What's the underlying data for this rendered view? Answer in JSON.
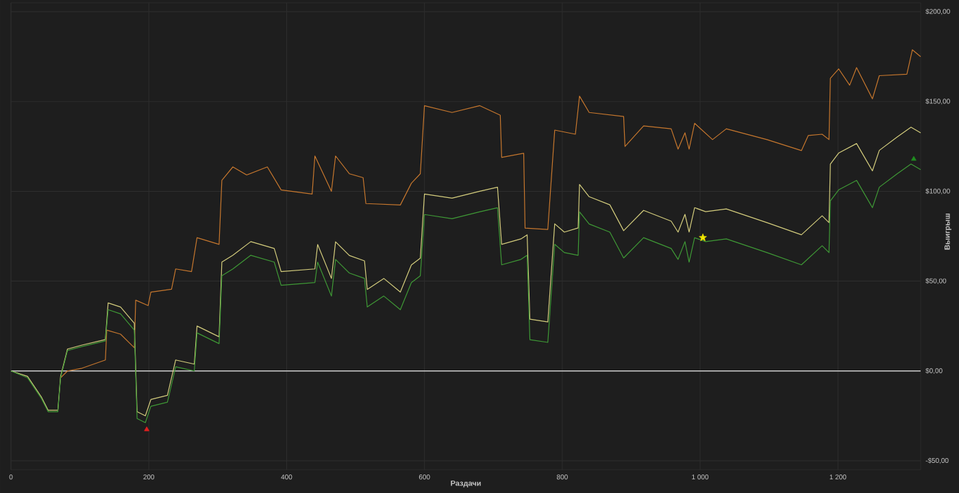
{
  "chart_data": {
    "type": "line",
    "xlabel": "Раздачи",
    "ylabel": "Выигрыш",
    "xlim": [
      0,
      1320
    ],
    "ylim": [
      -55,
      205
    ],
    "xticks": [
      0,
      200,
      400,
      600,
      800,
      {
        "value": 1000,
        "label": "1 000"
      },
      {
        "value": 1200,
        "label": "1 200"
      }
    ],
    "yticks": [
      {
        "value": -50,
        "label": "-$50,00"
      },
      {
        "value": 0,
        "label": "$0,00"
      },
      {
        "value": 50,
        "label": "$50,00"
      },
      {
        "value": 100,
        "label": "$100,00"
      },
      {
        "value": 150,
        "label": "$150,00"
      },
      {
        "value": 200,
        "label": "$200,00"
      }
    ],
    "grid": true,
    "legend": false,
    "marker": "none",
    "line_style": "solid",
    "ref_lines": [
      {
        "axis": "y",
        "value": 0,
        "color": "#d0d0d0"
      }
    ],
    "series": [
      {
        "color": "#c8782e",
        "x": [
          72,
          82,
          103,
          137,
          139,
          159,
          179,
          181,
          199,
          203,
          233,
          239,
          262,
          270,
          302,
          306,
          322,
          342,
          372,
          392,
          437,
          441,
          465,
          471,
          491,
          511,
          515,
          565,
          581,
          594,
          600,
          640,
          680,
          710,
          712,
          744,
          746,
          779,
          789,
          819,
          825,
          839,
          889,
          891,
          918,
          958,
          968,
          978,
          984,
          992,
          1018,
          1038,
          1097,
          1147,
          1157,
          1177,
          1187,
          1189,
          1201,
          1217,
          1227,
          1250,
          1260,
          1300,
          1308,
          1320
        ],
        "values": [
          -3.8,
          0,
          1.5,
          6.1,
          22.7,
          20.5,
          12.9,
          39.4,
          36.4,
          43.9,
          45.5,
          56.8,
          55.3,
          74.2,
          70.5,
          106.1,
          113.6,
          109.1,
          113.6,
          100.8,
          98.5,
          119.7,
          100,
          119.7,
          109.8,
          107.6,
          93.2,
          92.4,
          104.5,
          109.8,
          147.7,
          143.9,
          147.7,
          142.4,
          118.9,
          121.2,
          79.5,
          78.8,
          134.1,
          131.8,
          153,
          143.9,
          141.7,
          125,
          136.4,
          134.8,
          123.5,
          132.6,
          123.5,
          137.9,
          128.8,
          134.8,
          128.8,
          122.7,
          131.1,
          131.8,
          128.8,
          162.9,
          168.2,
          159.1,
          168.9,
          151.5,
          164.4,
          165.2,
          178.8,
          175
        ]
      },
      {
        "color": "#d6cf7e",
        "x": [
          0,
          24,
          44,
          54,
          68,
          72,
          82,
          103,
          137,
          141,
          159,
          179,
          183,
          195,
          203,
          227,
          239,
          266,
          270,
          302,
          306,
          322,
          348,
          382,
          392,
          441,
          445,
          465,
          471,
          491,
          513,
          517,
          541,
          565,
          581,
          594,
          600,
          640,
          680,
          706,
          712,
          740,
          749,
          753,
          779,
          789,
          803,
          823,
          825,
          839,
          869,
          889,
          918,
          958,
          968,
          978,
          984,
          992,
          1008,
          1038,
          1097,
          1147,
          1177,
          1187,
          1189,
          1201,
          1227,
          1250,
          1260,
          1286,
          1306,
          1320
        ],
        "values": [
          0,
          -3,
          -14.4,
          -21.9,
          -21.9,
          -3,
          12.2,
          14.4,
          17.5,
          37.9,
          35.6,
          26.5,
          -22.7,
          -25,
          -15.9,
          -13.6,
          6.1,
          3.8,
          25,
          19,
          60.6,
          64.4,
          72,
          68.2,
          55.3,
          56.8,
          70.4,
          51.5,
          71.9,
          64.3,
          61.3,
          45.4,
          51.5,
          43.9,
          59,
          62.8,
          98.5,
          96.2,
          100,
          102.3,
          70.5,
          73.5,
          75.8,
          28.8,
          27.3,
          81.9,
          77.3,
          79.6,
          103.8,
          97,
          92.5,
          78.1,
          89.4,
          83.4,
          77.3,
          87.2,
          77.3,
          90.9,
          88.7,
          90.2,
          82.6,
          75.8,
          86.4,
          82.6,
          115.2,
          121.3,
          126.6,
          111.4,
          122.8,
          130.3,
          135.7,
          132.6
        ]
      },
      {
        "color": "#3f9a36",
        "x": [
          0,
          24,
          44,
          54,
          68,
          72,
          82,
          103,
          137,
          141,
          159,
          179,
          183,
          195,
          203,
          227,
          239,
          266,
          270,
          302,
          306,
          322,
          348,
          382,
          392,
          441,
          445,
          465,
          471,
          491,
          513,
          517,
          541,
          565,
          581,
          594,
          600,
          640,
          680,
          706,
          712,
          740,
          749,
          753,
          779,
          789,
          803,
          823,
          825,
          839,
          869,
          889,
          918,
          958,
          968,
          978,
          984,
          992,
          1008,
          1038,
          1097,
          1147,
          1177,
          1187,
          1189,
          1201,
          1227,
          1250,
          1260,
          1286,
          1306,
          1320
        ],
        "values": [
          0,
          -3.8,
          -15.2,
          -22.7,
          -22.7,
          -3.8,
          11.4,
          13.6,
          16.7,
          34.1,
          31.8,
          22.7,
          -26.5,
          -28.8,
          -19.7,
          -17.4,
          2.3,
          0,
          21.2,
          15.2,
          53,
          56.8,
          64.4,
          60.6,
          47.7,
          49.2,
          60.6,
          41.7,
          62.1,
          54.5,
          51.5,
          35.6,
          41.7,
          34.1,
          49.2,
          53,
          87.1,
          84.8,
          88.6,
          90.9,
          59.1,
          62.1,
          64.4,
          17.4,
          15.9,
          70.5,
          65.9,
          64.4,
          88.6,
          81.8,
          77.3,
          62.9,
          74.2,
          68.2,
          62.1,
          72,
          60.6,
          74.2,
          72,
          73.5,
          65.9,
          59.1,
          69.7,
          65.9,
          94.7,
          100.8,
          106.1,
          90.9,
          102.3,
          109.8,
          115.2,
          112.1
        ]
      },
      {
        "type": "scatter",
        "marker": "triangle",
        "color": "#e02020",
        "x": [
          197
        ],
        "values": [
          -32.6
        ]
      },
      {
        "type": "scatter",
        "marker": "star",
        "color": "#f2e600",
        "x": [
          1004
        ],
        "values": [
          74.2
        ]
      },
      {
        "type": "scatter",
        "marker": "triangle",
        "color": "#1f8c1f",
        "x": [
          1310
        ],
        "values": [
          118
        ]
      }
    ]
  }
}
